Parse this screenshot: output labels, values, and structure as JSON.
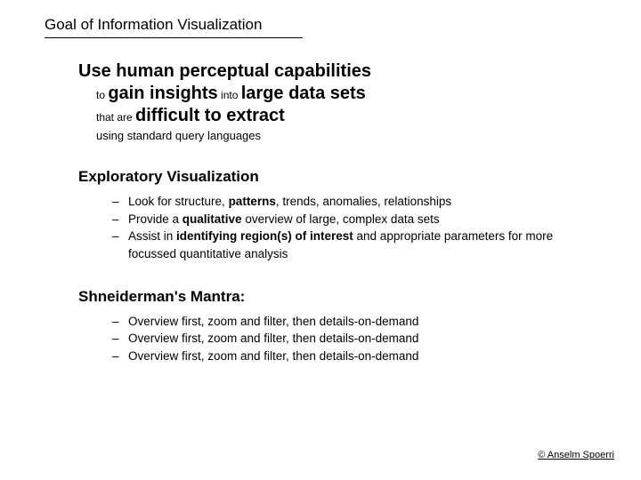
{
  "title": "Goal of Information Visualization",
  "headline": {
    "line1": "Use human perceptual capabilities",
    "line2_pre": "to ",
    "line2_bold1": "gain insights",
    "line2_mid": " into ",
    "line2_bold2": "large data sets",
    "line3_pre": "that are ",
    "line3_bold": "difficult to extract",
    "line4": "using standard query languages"
  },
  "section1": {
    "title": "Exploratory Visualization",
    "bullets": [
      {
        "pre": "Look for structure, ",
        "bold": "patterns",
        "post": ", trends, anomalies, relationships"
      },
      {
        "pre": "Provide a ",
        "bold": "qualitative",
        "post": " overview of large, complex data sets"
      },
      {
        "pre": "Assist in ",
        "bold": "identifying region(s) of interest",
        "post": " and appropriate parameters for more focussed quantitative analysis"
      }
    ]
  },
  "section2": {
    "title": "Shneiderman's Mantra:",
    "bullets": [
      "Overview first, zoom and filter, then details-on-demand",
      "Overview first, zoom and filter, then details-on-demand",
      "Overview first, zoom and filter, then details-on-demand"
    ]
  },
  "copyright": "© Anselm Spoerri",
  "colors": {
    "background": "#ffffff",
    "text": "#000000"
  },
  "fonts": {
    "family": "Verdana",
    "title_size": 17,
    "headline_size": 20,
    "small_size": 12,
    "body_size": 13.5,
    "section_size": 17
  }
}
